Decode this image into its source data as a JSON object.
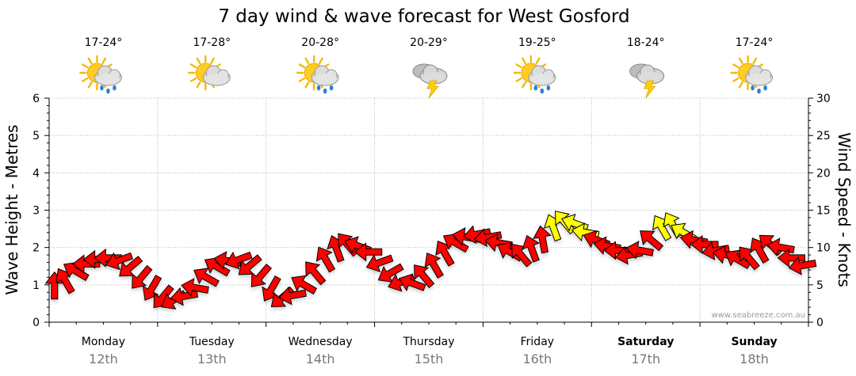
{
  "chart_data": {
    "type": "line",
    "title": "7 day wind & wave forecast for West Gosford",
    "ylabel": "Wave Height - Metres",
    "y2label": "Wind Speed - Knots",
    "ylim": [
      0,
      6
    ],
    "y2lim": [
      0,
      30
    ],
    "yticks": [
      "0",
      "1",
      "2",
      "3",
      "4",
      "5",
      "6"
    ],
    "y2ticks": [
      "0",
      "5",
      "10",
      "15",
      "20",
      "25",
      "30"
    ],
    "grid": true,
    "days": [
      {
        "day": "Monday",
        "date": "12th",
        "temp": "17-24°",
        "icon": "sun-cloud-rain-icon",
        "bold": false
      },
      {
        "day": "Tuesday",
        "date": "13th",
        "temp": "17-28°",
        "icon": "sun-cloud-icon",
        "bold": false
      },
      {
        "day": "Wednesday",
        "date": "14th",
        "temp": "20-28°",
        "icon": "sun-cloud-rain-icon",
        "bold": false
      },
      {
        "day": "Thursday",
        "date": "15th",
        "temp": "20-29°",
        "icon": "storm-cloud-icon",
        "bold": false
      },
      {
        "day": "Friday",
        "date": "16th",
        "temp": "19-25°",
        "icon": "sun-cloud-rain-icon",
        "bold": false
      },
      {
        "day": "Saturday",
        "date": "17th",
        "temp": "18-24°",
        "icon": "storm-cloud-icon",
        "bold": true
      },
      {
        "day": "Sunday",
        "date": "18th",
        "temp": "17-24°",
        "icon": "sun-cloud-rain-icon",
        "bold": true
      }
    ],
    "series": [
      {
        "name": "Wind Speed - Knots",
        "color_low": "#ff0000",
        "color_high": "#ffff00",
        "threshold_knots": 12,
        "x_days": [
          0.05,
          0.15,
          0.25,
          0.35,
          0.45,
          0.55,
          0.65,
          0.75,
          0.85,
          0.95,
          1.05,
          1.15,
          1.25,
          1.35,
          1.45,
          1.55,
          1.65,
          1.75,
          1.85,
          1.95,
          2.05,
          2.15,
          2.25,
          2.35,
          2.45,
          2.55,
          2.65,
          2.75,
          2.85,
          2.95,
          3.05,
          3.15,
          3.25,
          3.35,
          3.45,
          3.55,
          3.65,
          3.75,
          3.85,
          3.95,
          4.05,
          4.15,
          4.25,
          4.35,
          4.45,
          4.55,
          4.65,
          4.75,
          4.85,
          4.95,
          5.05,
          5.15,
          5.25,
          5.35,
          5.45,
          5.55,
          5.65,
          5.75,
          5.85,
          5.95,
          6.05,
          6.15,
          6.25,
          6.35,
          6.45,
          6.55,
          6.65,
          6.75,
          6.85,
          6.95
        ],
        "values": [
          4.8,
          5.5,
          6.8,
          7.8,
          8.4,
          8.6,
          8.3,
          7.4,
          6.0,
          4.6,
          3.4,
          3.0,
          3.5,
          4.6,
          6.0,
          7.4,
          8.2,
          8.4,
          7.6,
          6.2,
          4.5,
          3.3,
          3.6,
          5.0,
          6.6,
          8.4,
          9.8,
          10.4,
          10.2,
          9.4,
          8.0,
          6.6,
          5.4,
          5.2,
          6.2,
          7.6,
          9.2,
          10.6,
          11.4,
          11.8,
          11.4,
          10.6,
          9.4,
          9.0,
          9.8,
          11.0,
          12.6,
          13.4,
          13.2,
          12.0,
          11.0,
          10.2,
          9.6,
          9.0,
          9.6,
          11.0,
          12.6,
          13.0,
          12.0,
          11.0,
          10.4,
          9.6,
          9.0,
          8.4,
          8.6,
          9.6,
          10.4,
          10.0,
          8.6,
          7.6
        ],
        "directions_deg": [
          0,
          330,
          300,
          270,
          270,
          270,
          250,
          230,
          220,
          210,
          220,
          240,
          260,
          280,
          300,
          300,
          280,
          250,
          230,
          220,
          210,
          230,
          260,
          300,
          320,
          330,
          340,
          320,
          290,
          270,
          250,
          240,
          250,
          290,
          320,
          330,
          330,
          300,
          280,
          260,
          260,
          280,
          300,
          320,
          340,
          350,
          340,
          320,
          290,
          280,
          290,
          280,
          270,
          260,
          280,
          310,
          330,
          330,
          300,
          280,
          270,
          260,
          280,
          300,
          320,
          330,
          310,
          280,
          270,
          260
        ]
      }
    ],
    "credit": "www.seabreeze.com.au"
  }
}
